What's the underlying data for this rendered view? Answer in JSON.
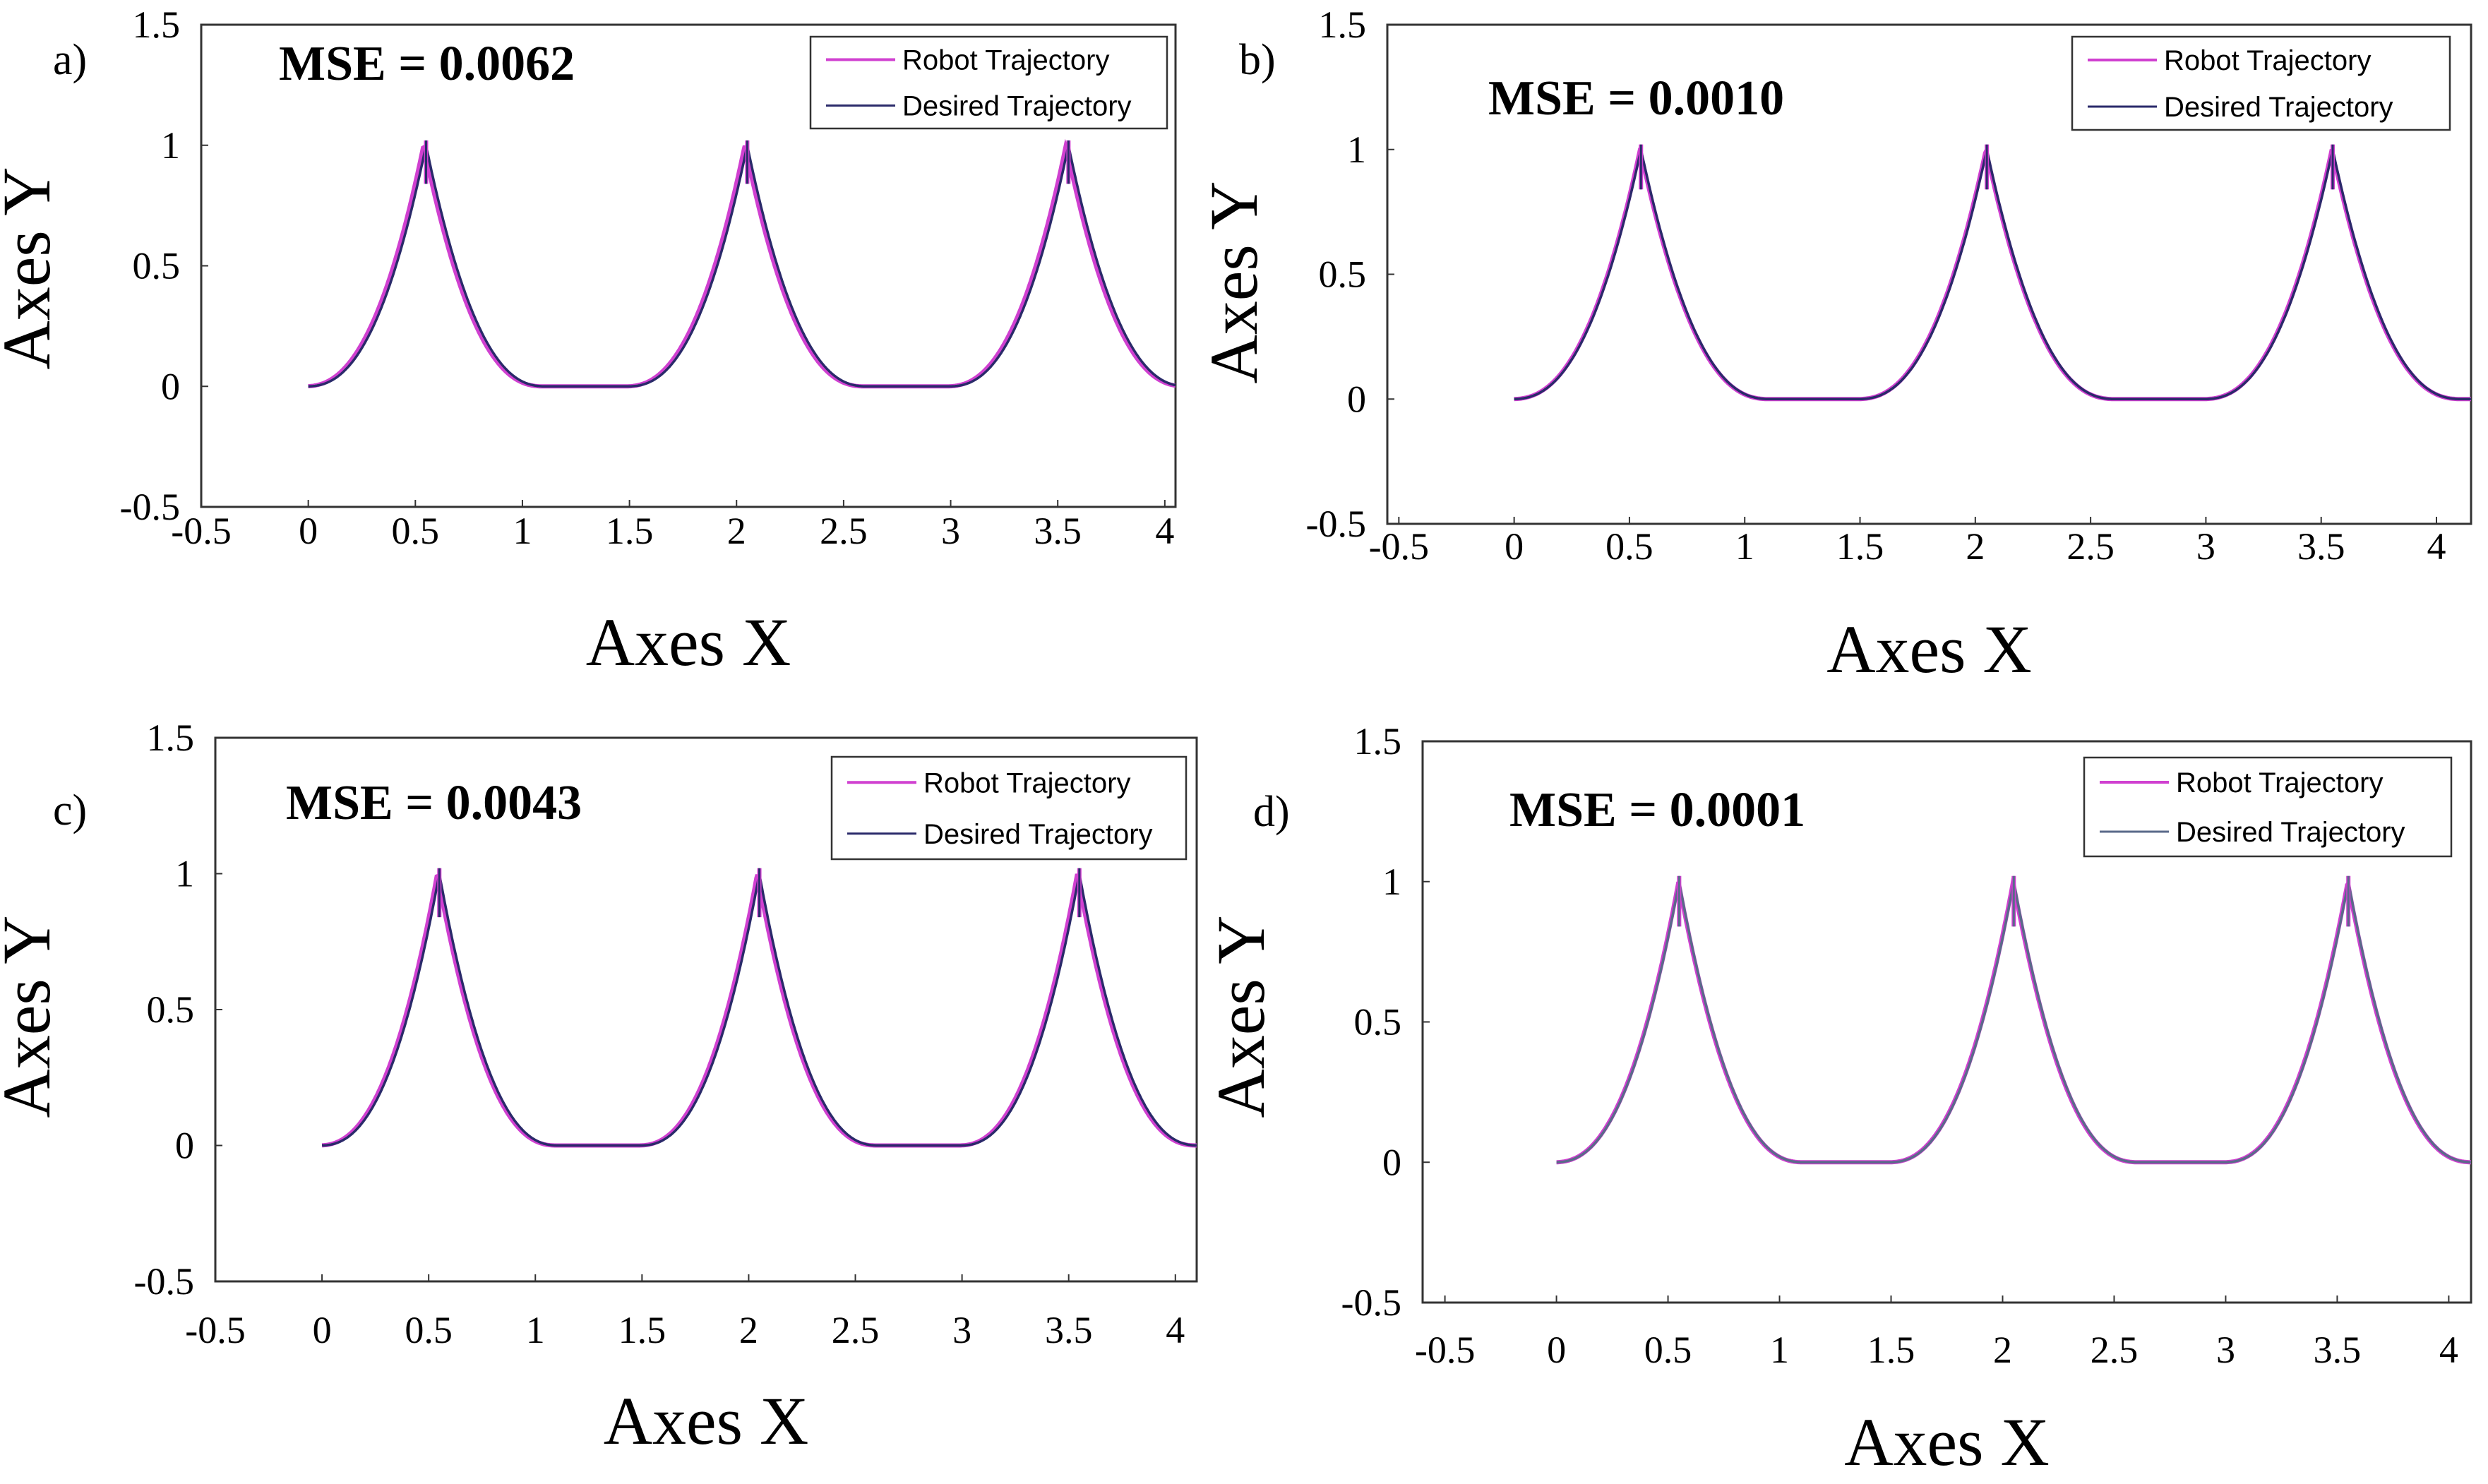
{
  "chart_data": [
    {
      "type": "line",
      "panel": "a)",
      "annotation": "MSE = 0.0062",
      "xlabel": "Axes X",
      "ylabel": "Axes Y",
      "xlim": [
        -0.5,
        4.05
      ],
      "ylim": [
        -0.5,
        1.5
      ],
      "xticks": [
        "-0.5",
        "0",
        "0.5",
        "1",
        "1.5",
        "2",
        "2.5",
        "3",
        "3.5",
        "4"
      ],
      "yticks": [
        "-0.5",
        "0",
        "0.5",
        "1",
        "1.5"
      ],
      "legend": [
        "Robot Trajectory",
        "Desired Trajectory"
      ],
      "legend_position": "top-right",
      "colors": {
        "robot": "#d040d0",
        "desired": "#2a2a6a"
      },
      "peaks_x": [
        0.55,
        2.05,
        3.55
      ],
      "peak_height": 1.0,
      "flat_segments": [
        [
          1.1,
          1.5
        ],
        [
          2.6,
          3.0
        ]
      ],
      "x_range": [
        0.0,
        4.05
      ],
      "robot_offset": 0.012
    },
    {
      "type": "line",
      "panel": "b)",
      "annotation": "MSE = 0.0010",
      "xlabel": "Axes X",
      "ylabel": "Axes Y",
      "xlim": [
        -0.55,
        4.15
      ],
      "ylim": [
        -0.5,
        1.5
      ],
      "xticks": [
        "-0.5",
        "0",
        "0.5",
        "1",
        "1.5",
        "2",
        "2.5",
        "3",
        "3.5",
        "4"
      ],
      "yticks": [
        "-0.5",
        "0",
        "0.5",
        "1",
        "1.5"
      ],
      "legend": [
        "Robot Trajectory",
        "Desired Trajectory"
      ],
      "legend_position": "top-right",
      "colors": {
        "robot": "#d040d0",
        "desired": "#2a2a6a"
      },
      "peaks_x": [
        0.55,
        2.05,
        3.55
      ],
      "peak_height": 1.0,
      "flat_segments": [
        [
          1.15,
          1.5
        ],
        [
          2.65,
          3.0
        ]
      ],
      "x_range": [
        0.0,
        4.15
      ],
      "robot_offset": 0.004
    },
    {
      "type": "line",
      "panel": "c)",
      "annotation": "MSE = 0.0043",
      "xlabel": "Axes X",
      "ylabel": "Axes Y",
      "xlim": [
        -0.5,
        4.1
      ],
      "ylim": [
        -0.5,
        1.5
      ],
      "xticks": [
        "-0.5",
        "0",
        "0.5",
        "1",
        "1.5",
        "2",
        "2.5",
        "3",
        "3.5",
        "4"
      ],
      "yticks": [
        "-0.5",
        "0",
        "0.5",
        "1",
        "1.5"
      ],
      "legend": [
        "Robot Trajectory",
        "Desired Trajectory"
      ],
      "legend_position": "top-right",
      "colors": {
        "robot": "#d040d0",
        "desired": "#2a2a6a"
      },
      "peaks_x": [
        0.55,
        2.05,
        3.55
      ],
      "peak_height": 1.0,
      "flat_segments": [
        [
          1.15,
          1.5
        ],
        [
          2.65,
          3.0
        ]
      ],
      "x_range": [
        0.0,
        4.1
      ],
      "robot_offset": 0.01
    },
    {
      "type": "line",
      "panel": "d)",
      "annotation": "MSE = 0.0001",
      "xlabel": "Axes X",
      "ylabel": "Axes Y",
      "xlim": [
        -0.6,
        4.1
      ],
      "ylim": [
        -0.5,
        1.5
      ],
      "xticks": [
        "-0.5",
        "0",
        "0.5",
        "1",
        "1.5",
        "2",
        "2.5",
        "3",
        "3.5",
        "4"
      ],
      "yticks": [
        "-0.5",
        "0",
        "0.5",
        "1",
        "1.5"
      ],
      "legend": [
        "Robot Trajectory",
        "Desired Trajectory"
      ],
      "legend_position": "top-right",
      "colors": {
        "robot": "#d040d0",
        "desired": "#5a6a8a"
      },
      "peaks_x": [
        0.55,
        2.05,
        3.55
      ],
      "peak_height": 1.0,
      "flat_segments": [
        [
          1.1,
          1.5
        ],
        [
          2.6,
          3.0
        ]
      ],
      "x_range": [
        0.0,
        4.1
      ],
      "robot_offset": 0.003
    }
  ]
}
